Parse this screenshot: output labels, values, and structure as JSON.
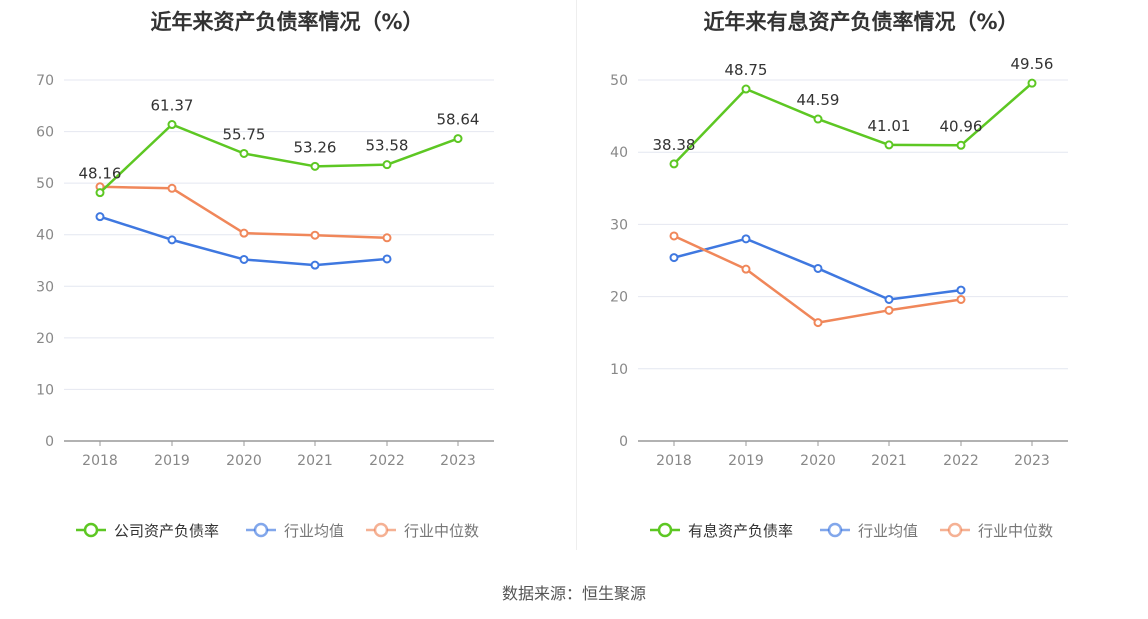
{
  "source": "数据来源：恒生聚源",
  "colors": {
    "company": "#5dc723",
    "industry_avg": "#3f78e0",
    "industry_median": "#f0875a",
    "grid": "#e4e7f0",
    "axis": "#888888",
    "label": "#333333"
  },
  "chart_data": [
    {
      "type": "line",
      "title": "近年来资产负债率情况（%）",
      "categories": [
        "2018",
        "2019",
        "2020",
        "2021",
        "2022",
        "2023"
      ],
      "ylim": [
        0,
        70
      ],
      "yticks": [
        "0",
        "10",
        "20",
        "30",
        "40",
        "50",
        "60",
        "70"
      ],
      "grid": true,
      "legend_position": "bottom",
      "series": [
        {
          "name": "公司资产负债率",
          "color": "#5dc723",
          "values": [
            48.16,
            61.37,
            55.75,
            53.26,
            53.58,
            58.64
          ],
          "labels": [
            "48.16",
            "61.37",
            "55.75",
            "53.26",
            "53.58",
            "58.64"
          ]
        },
        {
          "name": "行业均值",
          "color": "#3f78e0",
          "values": [
            43.5,
            39.0,
            35.2,
            34.1,
            35.3,
            null
          ]
        },
        {
          "name": "行业中位数",
          "color": "#f0875a",
          "values": [
            49.3,
            49.0,
            40.3,
            39.9,
            39.4,
            null
          ]
        }
      ]
    },
    {
      "type": "line",
      "title": "近年来有息资产负债率情况（%）",
      "categories": [
        "2018",
        "2019",
        "2020",
        "2021",
        "2022",
        "2023"
      ],
      "ylim": [
        0,
        50
      ],
      "yticks": [
        "0",
        "10",
        "20",
        "30",
        "40",
        "50"
      ],
      "grid": true,
      "legend_position": "bottom",
      "series": [
        {
          "name": "有息资产负债率",
          "color": "#5dc723",
          "values": [
            38.38,
            48.75,
            44.59,
            41.01,
            40.96,
            49.56
          ],
          "labels": [
            "38.38",
            "48.75",
            "44.59",
            "41.01",
            "40.96",
            "49.56"
          ]
        },
        {
          "name": "行业均值",
          "color": "#3f78e0",
          "values": [
            25.4,
            28.0,
            23.9,
            19.6,
            20.9,
            null
          ]
        },
        {
          "name": "行业中位数",
          "color": "#f0875a",
          "values": [
            28.4,
            23.8,
            16.4,
            18.1,
            19.6,
            null
          ]
        }
      ]
    }
  ]
}
